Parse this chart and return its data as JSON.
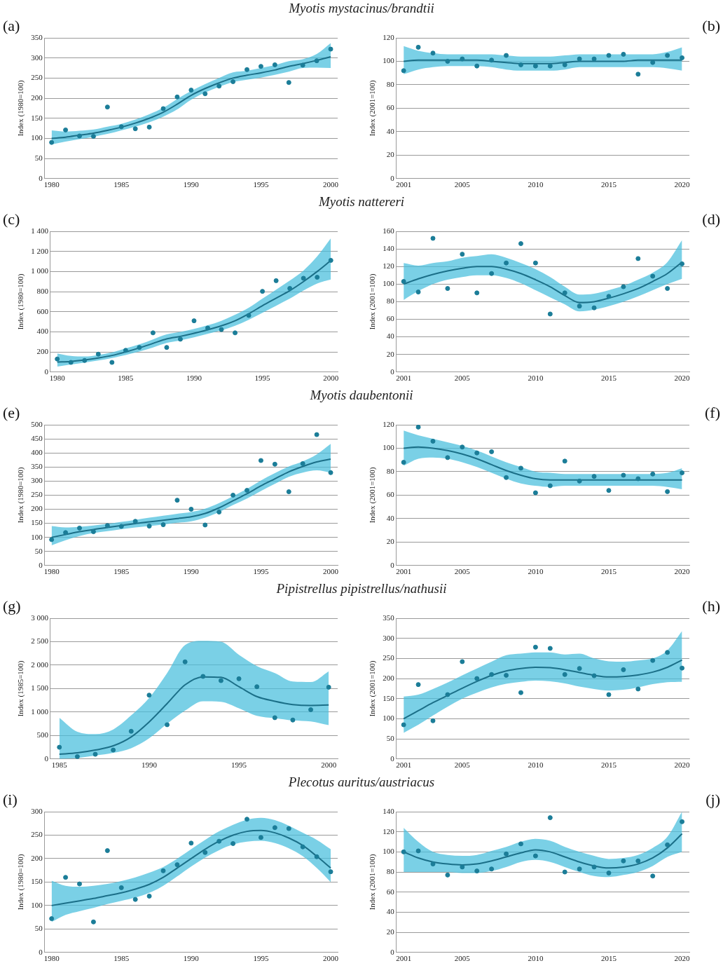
{
  "chart_data": [
    {
      "type": "scatter",
      "title": "Myotis mystacinus/brandtii",
      "ylabel": "Index (1980=100)",
      "annotations": [
        "(a)"
      ],
      "xlim": [
        1979.5,
        2000.5
      ],
      "xticks": [
        1980,
        1985,
        1990,
        1995,
        2000
      ],
      "ylim": [
        0,
        350
      ],
      "yticks": [
        0,
        50,
        100,
        150,
        200,
        250,
        300,
        350
      ],
      "grid": "y",
      "x": [
        1980,
        1981,
        1982,
        1983,
        1984,
        1985,
        1986,
        1987,
        1988,
        1989,
        1990,
        1991,
        1992,
        1993,
        1994,
        1995,
        1996,
        1997,
        1998,
        1999,
        2000
      ],
      "series": [
        {
          "type": "scatter",
          "marker": "circle",
          "color": "#1b7d98",
          "values": [
            90,
            121,
            106,
            105,
            178,
            129,
            124,
            128,
            174,
            203,
            220,
            211,
            230,
            241,
            271,
            279,
            283,
            239,
            282,
            293,
            322
          ]
        },
        {
          "type": "line",
          "marker": "none",
          "color": "#1b6f88",
          "values": [
            100,
            103,
            108,
            113,
            120,
            128,
            138,
            150,
            165,
            185,
            207,
            224,
            238,
            250,
            257,
            263,
            270,
            279,
            286,
            294,
            303
          ],
          "lower": [
            85,
            92,
            98,
            104,
            111,
            120,
            129,
            140,
            154,
            172,
            196,
            214,
            228,
            240,
            246,
            251,
            258,
            266,
            275,
            276,
            275
          ],
          "upper": [
            120,
            117,
            119,
            122,
            129,
            136,
            147,
            160,
            176,
            198,
            218,
            235,
            250,
            264,
            268,
            275,
            282,
            292,
            297,
            310,
            337
          ]
        }
      ]
    },
    {
      "type": "scatter",
      "ylabel": "Index (2001=100)",
      "annotations": [
        "(b)"
      ],
      "xlim": [
        2000.5,
        2020.5
      ],
      "xticks": [
        2001,
        2005,
        2010,
        2015,
        2020
      ],
      "ylim": [
        0,
        120
      ],
      "yticks": [
        0,
        20,
        40,
        60,
        80,
        100,
        120
      ],
      "grid": "y",
      "x": [
        2001,
        2002,
        2003,
        2004,
        2005,
        2006,
        2007,
        2008,
        2009,
        2010,
        2011,
        2012,
        2013,
        2014,
        2015,
        2016,
        2017,
        2018,
        2019,
        2020
      ],
      "series": [
        {
          "type": "scatter",
          "marker": "circle",
          "color": "#1b7d98",
          "values": [
            92,
            112,
            107,
            100,
            102,
            96,
            101,
            105,
            97,
            96,
            96,
            97,
            102,
            102,
            105,
            106,
            89,
            99,
            105,
            103
          ]
        },
        {
          "type": "line",
          "marker": "none",
          "color": "#1b6f88",
          "values": [
            100,
            101,
            101,
            101,
            101,
            101,
            100,
            99,
            98,
            98,
            98,
            99,
            100,
            100,
            100,
            100,
            101,
            101,
            101,
            101
          ],
          "lower": [
            89,
            93,
            95,
            96,
            96,
            96,
            95,
            93,
            92,
            92,
            92,
            93,
            95,
            95,
            95,
            95,
            95,
            95,
            94,
            92
          ],
          "upper": [
            113,
            109,
            107,
            106,
            106,
            106,
            106,
            105,
            104,
            104,
            104,
            105,
            106,
            106,
            106,
            106,
            106,
            106,
            108,
            112
          ]
        }
      ]
    },
    {
      "type": "scatter",
      "title": "Myotis nattereri",
      "ylabel": "Index (1980=100)",
      "annotations": [
        "(c)"
      ],
      "xlim": [
        1979.5,
        2000.5
      ],
      "xticks": [
        1980,
        1985,
        1990,
        1995,
        2000
      ],
      "ylim": [
        0,
        1400
      ],
      "yticks": [
        0,
        200,
        400,
        600,
        800,
        {
          "value": 1000,
          "label": "1 000"
        },
        {
          "value": 1200,
          "label": "1 200"
        },
        {
          "value": 1400,
          "label": "1 400"
        }
      ],
      "grid": "y",
      "x": [
        1980,
        1981,
        1982,
        1983,
        1984,
        1985,
        1986,
        1987,
        1988,
        1989,
        1990,
        1991,
        1992,
        1993,
        1994,
        1995,
        1996,
        1997,
        1998,
        1999,
        2000
      ],
      "series": [
        {
          "type": "scatter",
          "marker": "circle",
          "color": "#1b7d98",
          "values": [
            130,
            96,
            115,
            178,
            96,
            216,
            245,
            390,
            245,
            327,
            510,
            438,
            423,
            390,
            563,
            803,
            909,
            832,
            933,
            943,
            1111
          ]
        },
        {
          "type": "line",
          "marker": "none",
          "color": "#1b6f88",
          "values": [
            100,
            105,
            120,
            140,
            165,
            200,
            240,
            285,
            330,
            355,
            385,
            420,
            460,
            510,
            580,
            660,
            735,
            810,
            900,
            1000,
            1110
          ],
          "lower": [
            55,
            75,
            95,
            115,
            140,
            170,
            205,
            245,
            290,
            315,
            345,
            380,
            415,
            460,
            520,
            590,
            660,
            730,
            810,
            880,
            920
          ],
          "upper": [
            185,
            160,
            155,
            170,
            195,
            235,
            275,
            325,
            375,
            400,
            430,
            465,
            510,
            570,
            640,
            730,
            820,
            910,
            1010,
            1150,
            1330
          ]
        }
      ]
    },
    {
      "type": "scatter",
      "ylabel": "Index (2001=100)",
      "annotations": [
        "(d)"
      ],
      "xlim": [
        2000.5,
        2020.5
      ],
      "xticks": [
        2001,
        2005,
        2010,
        2015,
        2020
      ],
      "ylim": [
        0,
        160
      ],
      "yticks": [
        0,
        20,
        40,
        60,
        80,
        100,
        120,
        140,
        160
      ],
      "grid": "y",
      "x": [
        2001,
        2002,
        2003,
        2004,
        2005,
        2006,
        2007,
        2008,
        2009,
        2010,
        2011,
        2012,
        2013,
        2014,
        2015,
        2016,
        2017,
        2018,
        2019,
        2020
      ],
      "series": [
        {
          "type": "scatter",
          "marker": "circle",
          "color": "#1b7d98",
          "values": [
            103,
            91,
            152,
            95,
            134,
            90,
            112,
            124,
            146,
            124,
            66,
            90,
            75,
            73,
            86,
            97,
            129,
            109,
            95,
            123
          ]
        },
        {
          "type": "line",
          "marker": "none",
          "color": "#1b6f88",
          "values": [
            100,
            106,
            111,
            115,
            118,
            120,
            120,
            117,
            112,
            105,
            97,
            87,
            79,
            80,
            84,
            89,
            95,
            103,
            112,
            125
          ],
          "lower": [
            82,
            92,
            100,
            105,
            108,
            110,
            110,
            107,
            101,
            93,
            85,
            77,
            69,
            71,
            75,
            80,
            86,
            93,
            100,
            106
          ],
          "upper": [
            124,
            121,
            124,
            126,
            130,
            132,
            134,
            130,
            124,
            117,
            108,
            97,
            88,
            89,
            93,
            98,
            105,
            113,
            125,
            150
          ]
        }
      ]
    },
    {
      "type": "scatter",
      "title": "Myotis daubentonii",
      "ylabel": "Index (1980=100)",
      "annotations": [
        "(e)"
      ],
      "xlim": [
        1979.5,
        2000.5
      ],
      "xticks": [
        1980,
        1985,
        1990,
        1995,
        2000
      ],
      "ylim": [
        0,
        500
      ],
      "yticks": [
        0,
        50,
        100,
        150,
        200,
        250,
        300,
        350,
        400,
        450,
        500
      ],
      "grid": "y",
      "x": [
        1980,
        1981,
        1982,
        1983,
        1984,
        1985,
        1986,
        1987,
        1988,
        1989,
        1990,
        1991,
        1992,
        1993,
        1994,
        1995,
        1996,
        1997,
        1998,
        1999,
        2000
      ],
      "series": [
        {
          "type": "scatter",
          "marker": "circle",
          "color": "#1b7d98",
          "values": [
            92,
            117,
            133,
            120,
            142,
            139,
            157,
            140,
            145,
            232,
            200,
            144,
            190,
            250,
            267,
            373,
            360,
            262,
            362,
            465,
            330
          ]
        },
        {
          "type": "line",
          "marker": "none",
          "color": "#1b6f88",
          "values": [
            100,
            110,
            120,
            128,
            135,
            142,
            149,
            155,
            161,
            167,
            173,
            185,
            205,
            230,
            255,
            283,
            308,
            333,
            352,
            368,
            378
          ],
          "lower": [
            72,
            90,
            105,
            115,
            122,
            129,
            135,
            140,
            146,
            152,
            157,
            170,
            190,
            215,
            238,
            265,
            290,
            315,
            330,
            338,
            330
          ],
          "upper": [
            140,
            135,
            138,
            142,
            148,
            155,
            162,
            170,
            177,
            184,
            190,
            202,
            222,
            246,
            272,
            302,
            328,
            352,
            370,
            395,
            432
          ]
        }
      ]
    },
    {
      "type": "scatter",
      "ylabel": "Index (2001=100)",
      "annotations": [
        "(f)"
      ],
      "xlim": [
        2000.5,
        2020.5
      ],
      "xticks": [
        2001,
        2005,
        2010,
        2015,
        2020
      ],
      "ylim": [
        0,
        120
      ],
      "yticks": [
        0,
        20,
        40,
        60,
        80,
        100,
        120
      ],
      "grid": "y",
      "x": [
        2001,
        2002,
        2003,
        2004,
        2005,
        2006,
        2007,
        2008,
        2009,
        2010,
        2011,
        2012,
        2013,
        2014,
        2015,
        2016,
        2017,
        2018,
        2019,
        2020
      ],
      "series": [
        {
          "type": "scatter",
          "marker": "circle",
          "color": "#1b7d98",
          "values": [
            88,
            118,
            106,
            92,
            101,
            96,
            97,
            75,
            83,
            62,
            68,
            89,
            72,
            76,
            64,
            77,
            74,
            78,
            63,
            79
          ]
        },
        {
          "type": "line",
          "marker": "none",
          "color": "#1b6f88",
          "values": [
            100,
            101,
            100,
            98,
            95,
            91,
            86,
            81,
            77,
            74,
            73,
            73,
            73,
            73,
            73,
            73,
            73,
            73,
            73,
            73
          ],
          "lower": [
            85,
            91,
            92,
            91,
            88,
            84,
            79,
            74,
            70,
            68,
            67,
            68,
            68,
            68,
            68,
            68,
            68,
            68,
            67,
            65
          ],
          "upper": [
            115,
            111,
            108,
            105,
            102,
            98,
            93,
            88,
            84,
            80,
            79,
            78,
            78,
            78,
            78,
            78,
            78,
            78,
            79,
            83
          ]
        }
      ]
    },
    {
      "type": "scatter",
      "title": "Pipistrellus pipistrellus/nathusii",
      "ylabel": "Index (1985=100)",
      "annotations": [
        "(g)"
      ],
      "xlim": [
        1984.5,
        2000.5
      ],
      "xticks": [
        1985,
        1990,
        1995,
        2000
      ],
      "ylim": [
        0,
        3000
      ],
      "yticks": [
        0,
        500,
        {
          "value": 1000,
          "label": "1 000"
        },
        {
          "value": 1500,
          "label": "1 500"
        },
        {
          "value": 2000,
          "label": "2 000"
        },
        {
          "value": 2500,
          "label": "2 500"
        },
        {
          "value": 3000,
          "label": "3 000"
        }
      ],
      "grid": "y",
      "x": [
        1985,
        1986,
        1987,
        1988,
        1989,
        1990,
        1991,
        1992,
        1993,
        1994,
        1995,
        1996,
        1997,
        1998,
        1999,
        2000
      ],
      "series": [
        {
          "type": "scatter",
          "marker": "circle",
          "color": "#1b7d98",
          "values": [
            250,
            50,
            100,
            190,
            590,
            1360,
            730,
            2070,
            1760,
            1670,
            1710,
            1540,
            880,
            830,
            1050,
            1530
          ]
        },
        {
          "type": "line",
          "marker": "none",
          "color": "#1b6f88",
          "values": [
            100,
            130,
            190,
            280,
            470,
            790,
            1180,
            1580,
            1750,
            1740,
            1540,
            1330,
            1230,
            1160,
            1140,
            1150
          ],
          "lower": [
            0,
            20,
            70,
            130,
            230,
            440,
            750,
            1030,
            1230,
            1220,
            1080,
            920,
            870,
            820,
            800,
            720
          ],
          "upper": [
            880,
            580,
            530,
            630,
            930,
            1300,
            1830,
            2430,
            2520,
            2500,
            2220,
            1980,
            1830,
            1650,
            1640,
            1870
          ]
        }
      ]
    },
    {
      "type": "scatter",
      "ylabel": "Index (2001=100)",
      "annotations": [
        "(h)"
      ],
      "xlim": [
        2000.5,
        2020.5
      ],
      "xticks": [
        2001,
        2005,
        2010,
        2015,
        2020
      ],
      "ylim": [
        0,
        350
      ],
      "yticks": [
        0,
        50,
        100,
        150,
        200,
        250,
        300,
        350
      ],
      "grid": "y",
      "x": [
        2001,
        2002,
        2003,
        2004,
        2005,
        2006,
        2007,
        2008,
        2009,
        2010,
        2011,
        2012,
        2013,
        2014,
        2015,
        2016,
        2017,
        2018,
        2019,
        2020
      ],
      "series": [
        {
          "type": "scatter",
          "marker": "circle",
          "color": "#1b7d98",
          "values": [
            85,
            185,
            95,
            160,
            242,
            200,
            210,
            208,
            165,
            278,
            275,
            210,
            225,
            207,
            160,
            222,
            174,
            245,
            265,
            226
          ]
        },
        {
          "type": "line",
          "marker": "none",
          "color": "#1b6f88",
          "values": [
            100,
            120,
            140,
            158,
            176,
            193,
            208,
            219,
            225,
            228,
            227,
            222,
            215,
            208,
            204,
            205,
            209,
            216,
            228,
            246
          ],
          "lower": [
            65,
            85,
            108,
            130,
            150,
            165,
            178,
            187,
            192,
            195,
            193,
            188,
            180,
            174,
            170,
            172,
            178,
            186,
            191,
            192
          ],
          "upper": [
            155,
            160,
            174,
            190,
            208,
            225,
            242,
            258,
            262,
            265,
            265,
            260,
            262,
            250,
            243,
            242,
            245,
            250,
            270,
            318
          ]
        }
      ]
    },
    {
      "type": "scatter",
      "title": "Plecotus auritus/austriacus",
      "ylabel": "Index (1980=100)",
      "annotations": [
        "(i)"
      ],
      "xlim": [
        1979.5,
        2000.5
      ],
      "xticks": [
        1980,
        1985,
        1990,
        1995,
        2000
      ],
      "ylim": [
        0,
        300
      ],
      "yticks": [
        0,
        50,
        100,
        150,
        200,
        250,
        300
      ],
      "grid": "y",
      "x": [
        1980,
        1981,
        1982,
        1983,
        1984,
        1985,
        1986,
        1987,
        1988,
        1989,
        1990,
        1991,
        1992,
        1993,
        1994,
        1995,
        1996,
        1997,
        1998,
        1999,
        2000
      ],
      "series": [
        {
          "type": "scatter",
          "marker": "circle",
          "color": "#1b7d98",
          "values": [
            72,
            160,
            146,
            65,
            217,
            138,
            113,
            120,
            174,
            187,
            233,
            213,
            237,
            232,
            284,
            245,
            266,
            264,
            225,
            204,
            172
          ]
        },
        {
          "type": "line",
          "marker": "none",
          "color": "#1b6f88",
          "values": [
            100,
            105,
            110,
            115,
            121,
            127,
            135,
            145,
            160,
            180,
            200,
            220,
            237,
            250,
            258,
            260,
            255,
            244,
            228,
            205,
            180
          ],
          "lower": [
            65,
            80,
            88,
            95,
            103,
            110,
            117,
            127,
            142,
            162,
            183,
            202,
            218,
            230,
            236,
            238,
            233,
            222,
            205,
            180,
            150
          ],
          "upper": [
            153,
            142,
            140,
            142,
            146,
            152,
            160,
            170,
            182,
            200,
            220,
            240,
            258,
            272,
            283,
            287,
            282,
            270,
            255,
            240,
            220
          ]
        }
      ]
    },
    {
      "type": "scatter",
      "ylabel": "Index (2001=100)",
      "annotations": [
        "(j)"
      ],
      "xlim": [
        2000.5,
        2020.5
      ],
      "xticks": [
        2001,
        2005,
        2010,
        2015,
        2020
      ],
      "ylim": [
        0,
        140
      ],
      "yticks": [
        0,
        20,
        40,
        60,
        80,
        100,
        120,
        140
      ],
      "grid": "y",
      "x": [
        2001,
        2002,
        2003,
        2004,
        2005,
        2006,
        2007,
        2008,
        2009,
        2010,
        2011,
        2012,
        2013,
        2014,
        2015,
        2016,
        2017,
        2018,
        2019,
        2020
      ],
      "series": [
        {
          "type": "scatter",
          "marker": "circle",
          "color": "#1b7d98",
          "values": [
            100,
            101,
            88,
            77,
            85,
            81,
            83,
            98,
            108,
            96,
            134,
            80,
            83,
            85,
            79,
            91,
            91,
            76,
            107,
            130
          ]
        },
        {
          "type": "line",
          "marker": "none",
          "color": "#1b6f88",
          "values": [
            100,
            94,
            90,
            88,
            87,
            88,
            91,
            95,
            99,
            102,
            100,
            95,
            90,
            86,
            84,
            85,
            88,
            94,
            104,
            118
          ],
          "lower": [
            80,
            80,
            80,
            80,
            79,
            79,
            81,
            85,
            90,
            92,
            90,
            85,
            80,
            76,
            75,
            77,
            80,
            86,
            95,
            100
          ],
          "upper": [
            124,
            110,
            100,
            97,
            96,
            97,
            101,
            105,
            110,
            113,
            111,
            105,
            100,
            96,
            93,
            94,
            97,
            104,
            115,
            140
          ]
        }
      ]
    }
  ]
}
